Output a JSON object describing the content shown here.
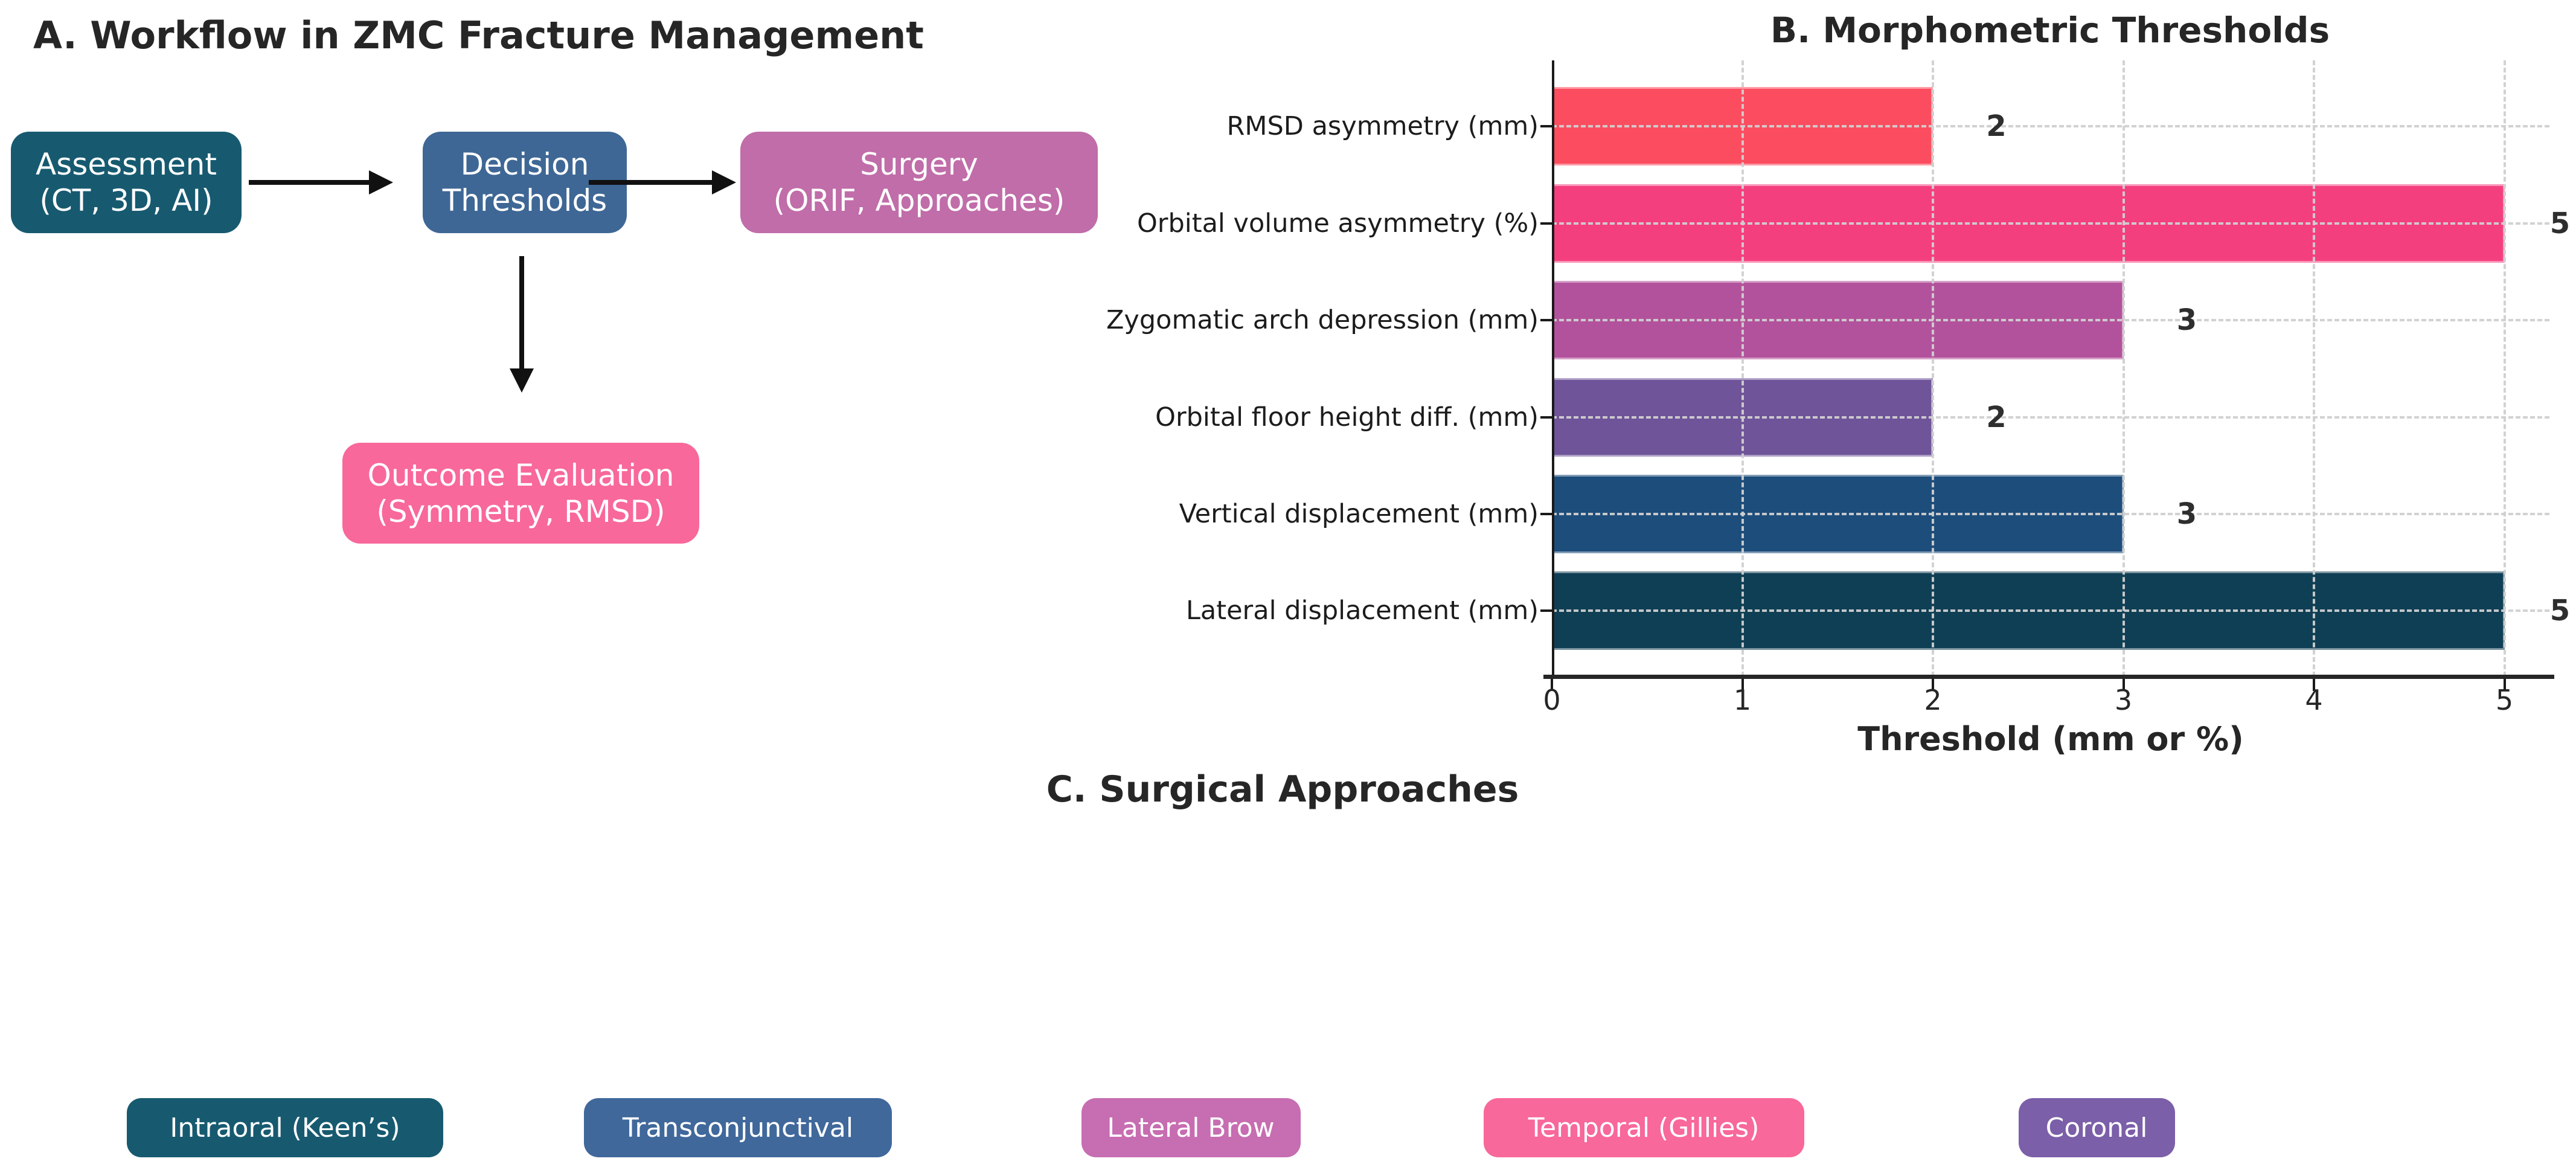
{
  "figure_background": "#ffffff",
  "panel_a": {
    "title": "A. Workflow in ZMC Fracture Management",
    "nodes": [
      {
        "id": "assessment",
        "lines": [
          "Assessment",
          "(CT, 3D, AI)"
        ],
        "color": "#175A70"
      },
      {
        "id": "decision",
        "lines": [
          "Decision",
          "Thresholds"
        ],
        "color": "#3E6795"
      },
      {
        "id": "surgery",
        "lines": [
          "Surgery",
          "(ORIF, Approaches)"
        ],
        "color": "#C06DA9"
      },
      {
        "id": "outcome",
        "lines": [
          "Outcome Evaluation",
          "(Symmetry, RMSD)"
        ],
        "color": "#F8689A"
      }
    ],
    "arrows": [
      {
        "from": "assessment",
        "to": "decision"
      },
      {
        "from": "decision",
        "to": "surgery"
      },
      {
        "from": "decision",
        "to": "outcome"
      }
    ]
  },
  "chart_data": {
    "type": "bar",
    "orientation": "horizontal",
    "title": "B. Morphometric Thresholds",
    "xlabel": "Threshold (mm or %)",
    "categories": [
      "RMSD asymmetry (mm)",
      "Orbital volume asymmetry (%)",
      "Zygomatic arch depression (mm)",
      "Orbital floor height diff. (mm)",
      "Vertical displacement (mm)",
      "Lateral displacement (mm)"
    ],
    "values": [
      2,
      5,
      3,
      2,
      3,
      5
    ],
    "value_labels": [
      "2",
      "5",
      "3",
      "2",
      "3",
      "5"
    ],
    "bar_colors": [
      "#FB4D5F",
      "#F43F7E",
      "#B2529C",
      "#6F5499",
      "#1D4D7B",
      "#0F3F55"
    ],
    "xlim": [
      0,
      5
    ],
    "x_ticks": [
      "0",
      "1",
      "2",
      "3",
      "4",
      "5"
    ],
    "grid": "dashed",
    "legend": "none"
  },
  "panel_c": {
    "title": "C. Surgical Approaches",
    "approaches": [
      {
        "label": "Intraoral (Keen’s)",
        "color": "#175A70"
      },
      {
        "label": "Transconjunctival",
        "color": "#40689B"
      },
      {
        "label": "Lateral Brow",
        "color": "#C76DB1"
      },
      {
        "label": "Temporal (Gillies)",
        "color": "#F8689A"
      },
      {
        "label": "Coronal",
        "color": "#7B5FA9"
      }
    ]
  },
  "text_colors": {
    "title": "#262626",
    "labels": "#1c1c1c",
    "node_text": "#ffffff"
  }
}
